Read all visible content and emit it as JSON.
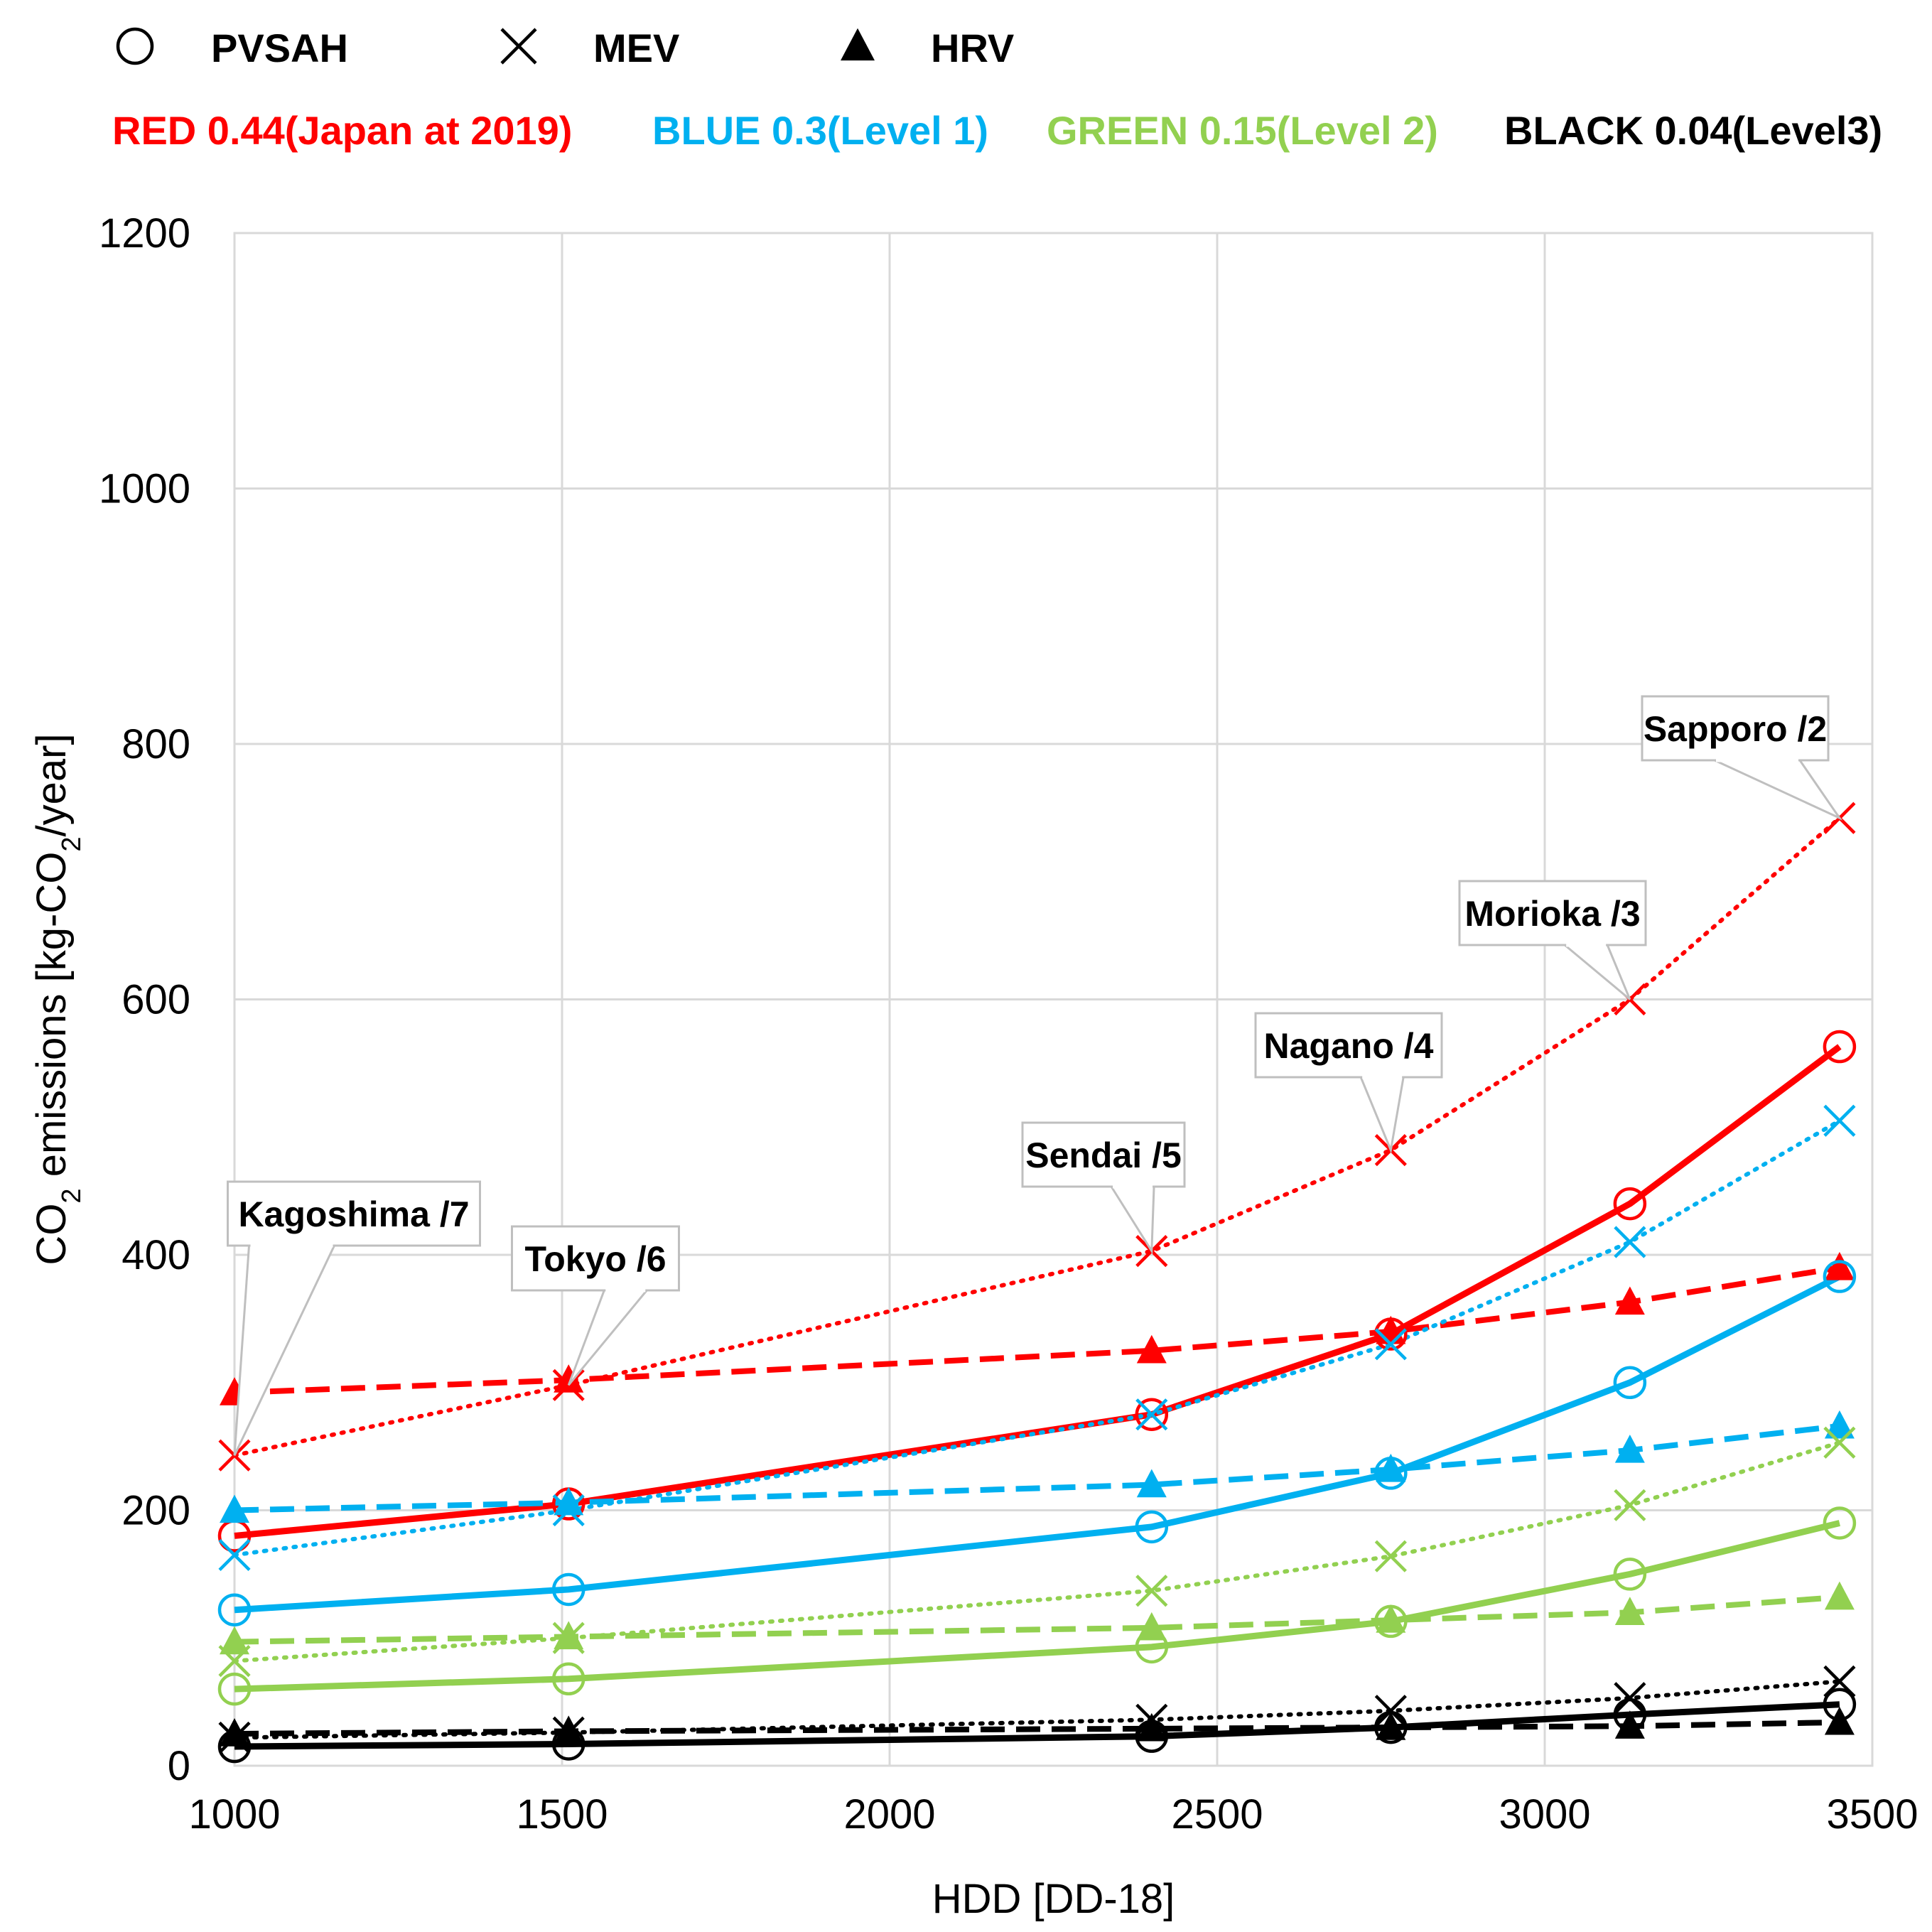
{
  "chart_data": {
    "type": "line",
    "xlabel": "HDD [DD-18]",
    "ylabel_prefix": "CO",
    "ylabel_sub": "2",
    "ylabel_suffix": " emissions [kg-CO",
    "ylabel_sub2": "2",
    "ylabel_end": "/year]",
    "xlim": [
      1000,
      3500
    ],
    "ylim": [
      0,
      1200
    ],
    "xticks": [
      1000,
      1500,
      2000,
      2500,
      3000,
      3500
    ],
    "yticks": [
      0,
      200,
      400,
      600,
      800,
      1000,
      1200
    ],
    "grid": true,
    "legend_markers": [
      {
        "symbol": "circle",
        "label": "PVSAH"
      },
      {
        "symbol": "cross",
        "label": "MEV"
      },
      {
        "symbol": "triangle",
        "label": "HRV"
      }
    ],
    "legend_colors": [
      {
        "label": "RED 0.44(Japan at 2019)",
        "color": "#ff0000"
      },
      {
        "label": "BLUE 0.3(Level 1)",
        "color": "#00b0f0"
      },
      {
        "label": "GREEN 0.15(Level 2)",
        "color": "#92d050"
      },
      {
        "label": "BLACK 0.04(Level3)",
        "color": "#000000"
      }
    ],
    "x": [
      1000,
      1510,
      2400,
      2765,
      3130,
      3450
    ],
    "series": [
      {
        "name": "PVSAH RED",
        "marker": "circle",
        "line": "solid",
        "color": "#ff0000",
        "values": [
          180,
          205,
          275,
          338,
          440,
          563
        ]
      },
      {
        "name": "MEV RED",
        "marker": "cross",
        "line": "dotted",
        "color": "#ff0000",
        "values": [
          243,
          298,
          403,
          482,
          600,
          742
        ]
      },
      {
        "name": "HRV RED",
        "marker": "triangle",
        "line": "dashed",
        "color": "#ff0000",
        "values": [
          292,
          302,
          325,
          340,
          363,
          390
        ]
      },
      {
        "name": "PVSAH BLUE",
        "marker": "circle",
        "line": "solid",
        "color": "#00b0f0",
        "values": [
          122,
          138,
          187,
          229,
          300,
          383
        ]
      },
      {
        "name": "MEV BLUE",
        "marker": "cross",
        "line": "dotted",
        "color": "#00b0f0",
        "values": [
          165,
          200,
          275,
          330,
          410,
          505
        ]
      },
      {
        "name": "HRV BLUE",
        "marker": "triangle",
        "line": "dashed",
        "color": "#00b0f0",
        "values": [
          200,
          206,
          220,
          232,
          247,
          266
        ]
      },
      {
        "name": "PVSAH GREEN",
        "marker": "circle",
        "line": "solid",
        "color": "#92d050",
        "values": [
          60,
          68,
          93,
          113,
          150,
          190
        ]
      },
      {
        "name": "MEV GREEN",
        "marker": "cross",
        "line": "dotted",
        "color": "#92d050",
        "values": [
          82,
          100,
          137,
          164,
          204,
          253
        ]
      },
      {
        "name": "HRV GREEN",
        "marker": "triangle",
        "line": "dashed",
        "color": "#92d050",
        "values": [
          97,
          101,
          108,
          114,
          120,
          132
        ]
      },
      {
        "name": "PVSAH BLACK",
        "marker": "circle",
        "line": "solid",
        "color": "#000000",
        "values": [
          15,
          17,
          23,
          30,
          40,
          48
        ]
      },
      {
        "name": "MEV BLACK",
        "marker": "cross",
        "line": "dotted",
        "color": "#000000",
        "values": [
          22,
          26,
          36,
          43,
          53,
          66
        ]
      },
      {
        "name": "HRV BLACK",
        "marker": "triangle",
        "line": "dashed",
        "color": "#000000",
        "values": [
          25,
          27,
          29,
          30,
          31,
          34
        ]
      }
    ],
    "annotations": [
      {
        "label": "Kagoshima /7",
        "x": 1000,
        "y": 243
      },
      {
        "label": "Tokyo /6",
        "x": 1510,
        "y": 298
      },
      {
        "label": "Sendai /5",
        "x": 2400,
        "y": 403
      },
      {
        "label": "Nagano /4",
        "x": 2765,
        "y": 482
      },
      {
        "label": "Morioka /3",
        "x": 3130,
        "y": 600
      },
      {
        "label": "Sapporo /2",
        "x": 3450,
        "y": 742
      }
    ]
  }
}
